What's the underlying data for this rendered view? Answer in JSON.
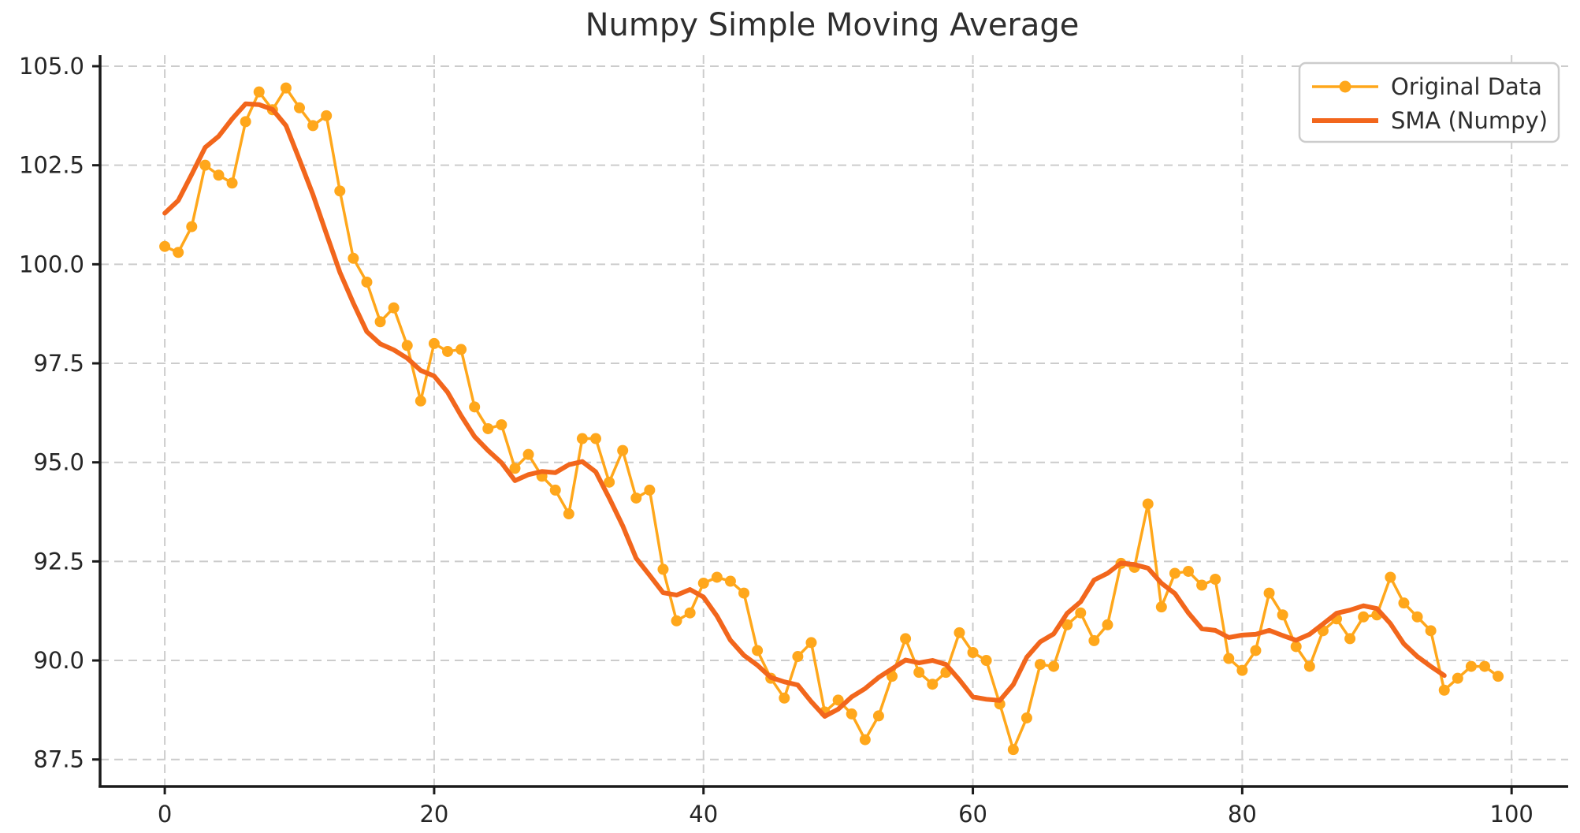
{
  "figure": {
    "title": "Numpy Simple Moving Average",
    "background": "#ffffff"
  },
  "colors": {
    "original_series": "#FFA71B",
    "sma_series": "#F2661C",
    "grid": "#cccccc",
    "spine": "#1a1a1a",
    "text": "#262626",
    "legend_border": "#cccccc",
    "legend_background": "#ffffff"
  },
  "legend": {
    "position": "upper right",
    "entries": [
      {
        "label": "Original Data",
        "color": "#FFA71B",
        "has_marker": true
      },
      {
        "label": "SMA (Numpy)",
        "color": "#F2661C",
        "has_marker": false
      }
    ]
  },
  "chart_data": {
    "type": "line",
    "title": "Numpy Simple Moving Average",
    "xlabel": "",
    "ylabel": "",
    "grid": "dashed",
    "legend_position": "upper right",
    "xlim": [
      -4.95,
      103.95
    ],
    "ylim": [
      86.9,
      105.3
    ],
    "x_tick_values": [
      0,
      20,
      40,
      60,
      80,
      100
    ],
    "x_tick_labels": [
      "0",
      "20",
      "40",
      "60",
      "80",
      "100"
    ],
    "y_tick_values": [
      87.5,
      90.0,
      92.5,
      95.0,
      97.5,
      100.0,
      102.5,
      105.0
    ],
    "y_tick_labels": [
      "87.5",
      "90.0",
      "92.5",
      "95.0",
      "97.5",
      "100.0",
      "102.5",
      "105.0"
    ],
    "series": [
      {
        "name": "Original Data",
        "color": "#FFA71B",
        "marker": "circle",
        "line_width": 3.5,
        "x_start": 0,
        "x_step": 1,
        "values": [
          100.45,
          100.3,
          100.95,
          102.5,
          102.25,
          102.05,
          103.6,
          104.35,
          103.9,
          104.45,
          103.95,
          103.5,
          103.75,
          101.85,
          100.15,
          99.55,
          98.55,
          98.9,
          97.95,
          96.55,
          98.0,
          97.8,
          97.85,
          96.4,
          95.85,
          95.95,
          94.85,
          95.2,
          94.65,
          94.3,
          93.7,
          95.6,
          95.6,
          94.5,
          95.3,
          94.1,
          94.3,
          92.3,
          91.0,
          91.2,
          91.95,
          92.1,
          92.0,
          91.7,
          90.25,
          89.55,
          89.05,
          90.1,
          90.45,
          88.7,
          89.0,
          88.65,
          88.0,
          88.6,
          89.6,
          90.55,
          89.7,
          89.4,
          89.7,
          90.7,
          90.2,
          90.0,
          88.9,
          87.75,
          88.55,
          89.9,
          89.85,
          90.9,
          91.2,
          90.5,
          90.9,
          92.45,
          92.35,
          93.95,
          91.35,
          92.2,
          92.25,
          91.9,
          92.05,
          90.05,
          89.75,
          90.25,
          91.7,
          91.15,
          90.35,
          89.85,
          90.75,
          91.05,
          90.55,
          91.1,
          91.15,
          92.1,
          91.45,
          91.1,
          90.75,
          89.25,
          89.55,
          89.85,
          89.85,
          89.6
        ]
      },
      {
        "name": "SMA (Numpy)",
        "color": "#F2661C",
        "marker": null,
        "line_width": 6,
        "window": 5,
        "x_start": 0,
        "x_step": 1,
        "values": [
          101.29,
          101.61,
          102.27,
          102.95,
          103.23,
          103.67,
          104.05,
          104.03,
          103.91,
          103.5,
          102.64,
          101.76,
          100.77,
          99.8,
          99.02,
          98.3,
          97.99,
          97.84,
          97.63,
          97.32,
          97.18,
          96.77,
          96.18,
          95.65,
          95.3,
          94.99,
          94.54,
          94.69,
          94.77,
          94.74,
          94.94,
          95.02,
          94.76,
          94.1,
          93.4,
          92.58,
          92.15,
          91.71,
          91.65,
          91.79,
          91.6,
          91.12,
          90.51,
          90.13,
          89.88,
          89.57,
          89.46,
          89.38,
          88.96,
          88.59,
          88.77,
          89.08,
          89.29,
          89.57,
          89.79,
          90.01,
          89.94,
          90.0,
          89.9,
          89.51,
          89.08,
          89.02,
          88.99,
          89.39,
          90.08,
          90.47,
          90.67,
          91.19,
          91.48,
          92.03,
          92.2,
          92.46,
          92.42,
          92.33,
          91.95,
          91.69,
          91.2,
          90.8,
          90.76,
          90.58,
          90.64,
          90.66,
          90.76,
          90.63,
          90.51,
          90.66,
          90.92,
          91.19,
          91.27,
          91.38,
          91.31,
          90.93,
          90.42,
          90.1,
          89.85,
          89.62
        ]
      }
    ]
  }
}
